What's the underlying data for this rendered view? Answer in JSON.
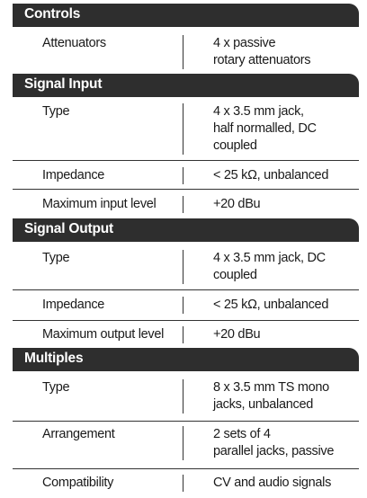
{
  "sections": [
    {
      "title": "Controls",
      "rows": [
        {
          "label": "Attenuators",
          "value": "4 x passive\nrotary attenuators"
        }
      ]
    },
    {
      "title": "Signal Input",
      "rows": [
        {
          "label": "Type",
          "value": "4 x 3.5 mm jack,\nhalf normalled, DC\ncoupled"
        },
        {
          "label": "Impedance",
          "value": "< 25 kΩ, unbalanced"
        },
        {
          "label": "Maximum input level",
          "value": "+20 dBu"
        }
      ]
    },
    {
      "title": "Signal Output",
      "rows": [
        {
          "label": "Type",
          "value": "4 x 3.5 mm jack, DC\ncoupled"
        },
        {
          "label": "Impedance",
          "value": "< 25 kΩ, unbalanced"
        },
        {
          "label": "Maximum output level",
          "value": "+20 dBu"
        }
      ]
    },
    {
      "title": "Multiples",
      "rows": [
        {
          "label": "Type",
          "value": "8 x 3.5 mm TS mono\njacks, unbalanced"
        },
        {
          "label": "Arrangement",
          "value": "2 sets of 4\nparallel jacks, passive"
        },
        {
          "label": "Compatibility",
          "value": "CV and audio signals"
        }
      ]
    }
  ]
}
